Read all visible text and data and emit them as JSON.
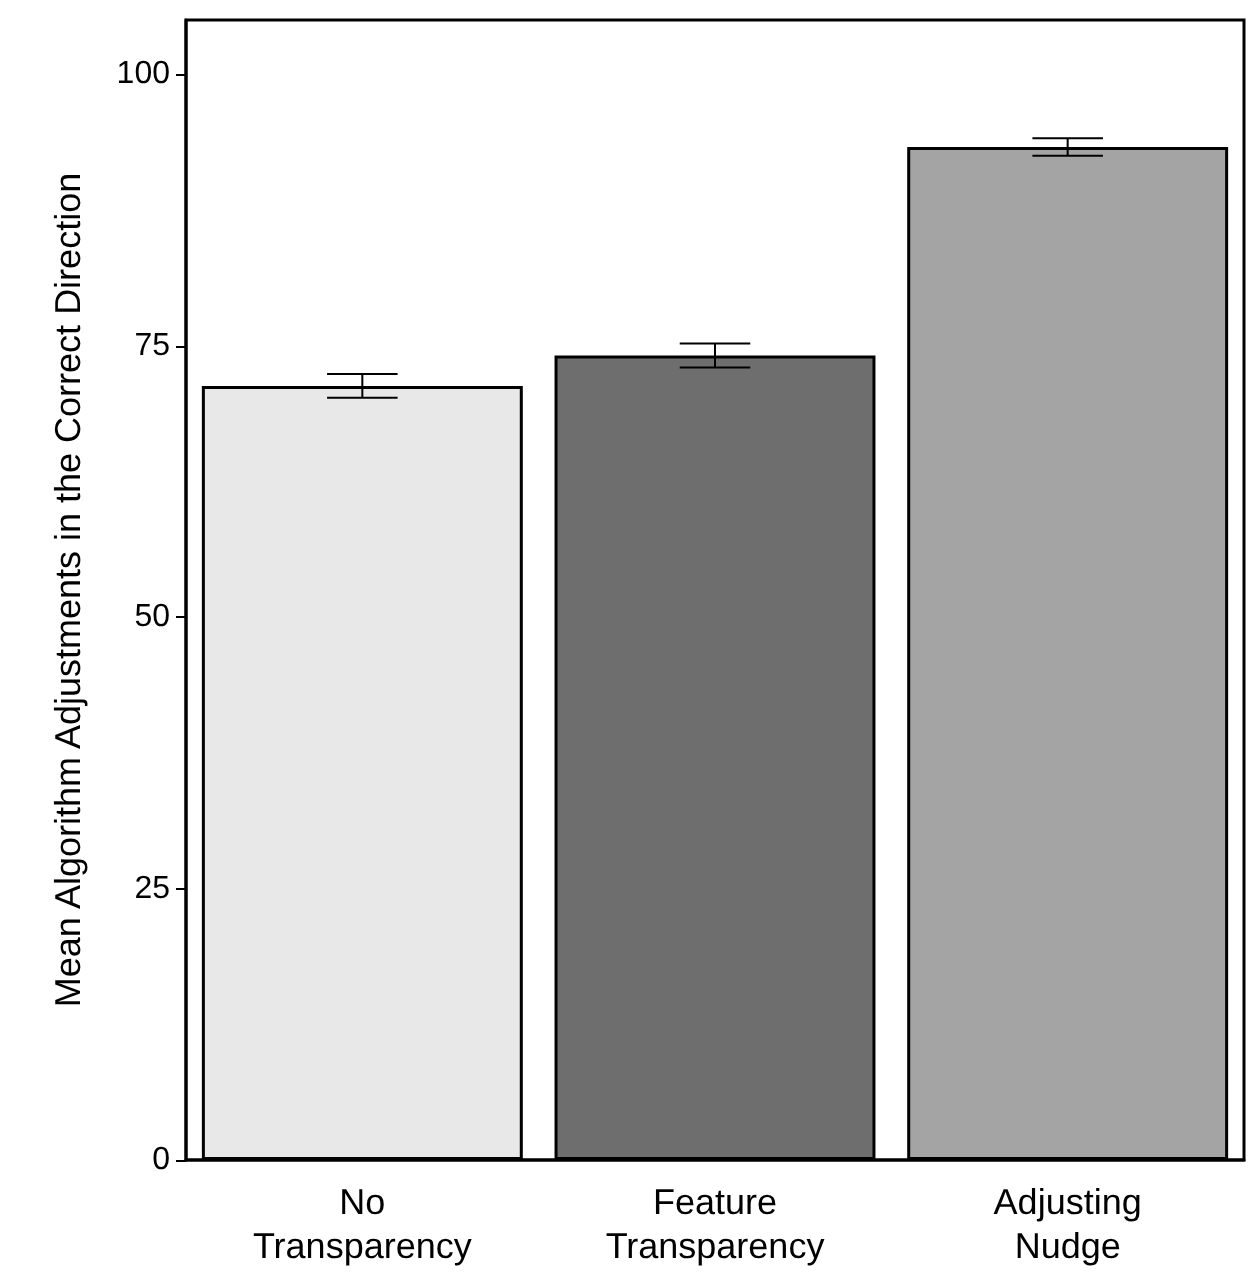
{
  "chart_data": {
    "type": "bar",
    "ylabel": "Mean Algorithm Adjustments in the Correct Direction",
    "categories": [
      "No\nTransparency",
      "Feature\nTransparency",
      "Adjusting\nNudge"
    ],
    "values": [
      71.3,
      74.1,
      93.3
    ],
    "colors": [
      "#e8e8e8",
      "#6e6e6e",
      "#a4a4a4"
    ],
    "errors": [
      1.1,
      1.1,
      0.8
    ],
    "ylim": [
      0,
      105
    ],
    "yticks": [
      0,
      25,
      50,
      75,
      100
    ],
    "grid": false
  }
}
